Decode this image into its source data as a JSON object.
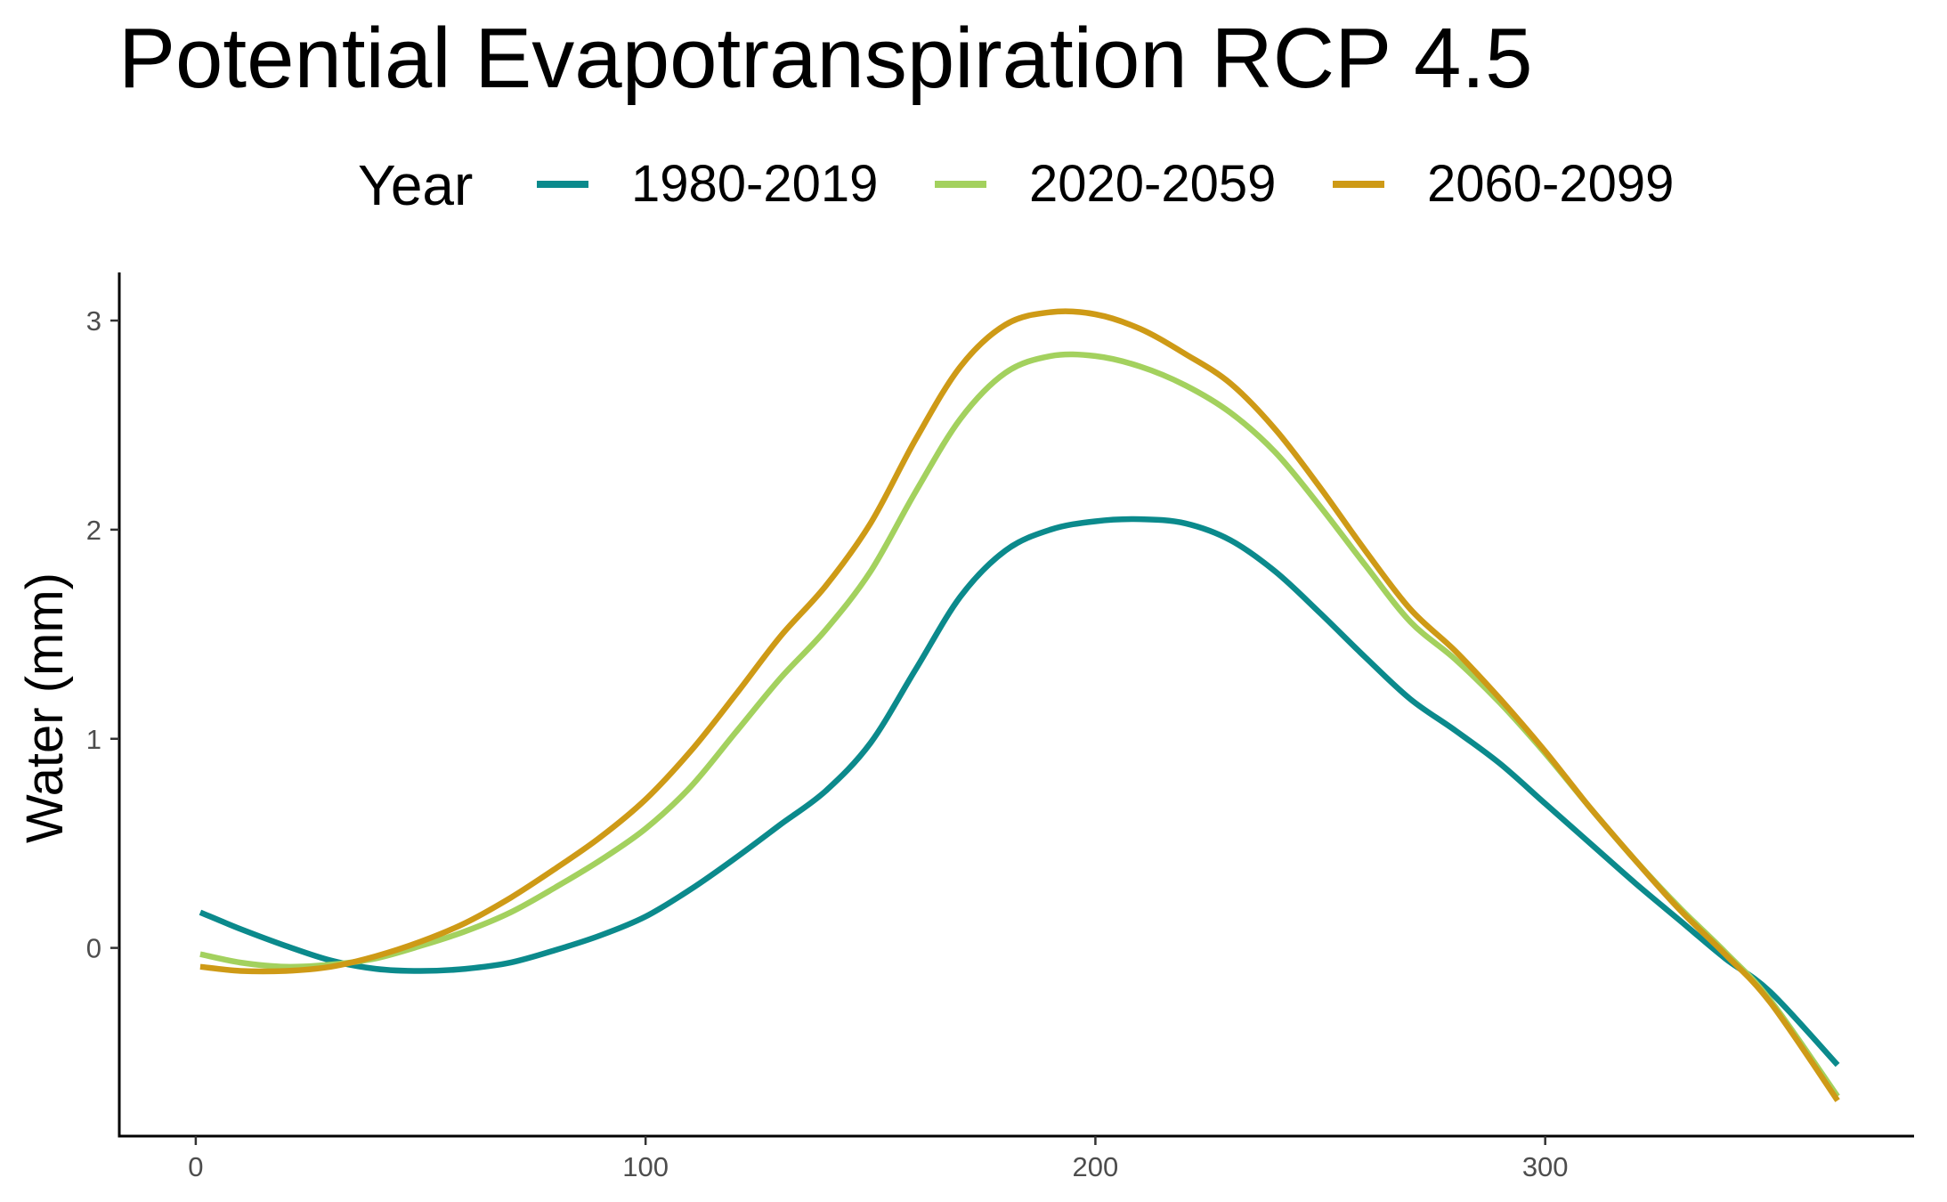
{
  "chart_data": {
    "type": "line",
    "title": "Potential Evapotranspiration RCP 4.5",
    "xlabel": "",
    "ylabel": "Water (mm)",
    "xlim": [
      -17,
      382
    ],
    "ylim": [
      -0.9,
      3.23
    ],
    "x_ticks": [
      0,
      100,
      200,
      300
    ],
    "x_tick_labels": [
      "0",
      "100",
      "200",
      "300"
    ],
    "y_ticks": [
      0,
      1,
      2,
      3
    ],
    "y_tick_labels": [
      "0",
      "1",
      "2",
      "3"
    ],
    "grid": false,
    "legend": {
      "title": "Year",
      "position": "top"
    },
    "series": [
      {
        "name": "1980-2019",
        "color": "#0B8A8C",
        "x": [
          1,
          10,
          20,
          30,
          40,
          50,
          60,
          70,
          80,
          90,
          100,
          110,
          120,
          130,
          140,
          150,
          160,
          170,
          180,
          190,
          200,
          210,
          220,
          230,
          240,
          250,
          260,
          270,
          280,
          290,
          300,
          310,
          320,
          330,
          340,
          350,
          365
        ],
        "values": [
          0.17,
          0.09,
          0.01,
          -0.06,
          -0.1,
          -0.11,
          -0.1,
          -0.07,
          -0.01,
          0.06,
          0.15,
          0.28,
          0.43,
          0.59,
          0.75,
          0.98,
          1.33,
          1.68,
          1.9,
          2.0,
          2.04,
          2.05,
          2.03,
          1.95,
          1.8,
          1.6,
          1.39,
          1.19,
          1.04,
          0.88,
          0.69,
          0.5,
          0.31,
          0.13,
          -0.05,
          -0.21,
          -0.56
        ]
      },
      {
        "name": "2020-2059",
        "color": "#A3D15E",
        "x": [
          1,
          10,
          20,
          30,
          40,
          50,
          60,
          70,
          80,
          90,
          100,
          110,
          120,
          130,
          140,
          150,
          160,
          170,
          180,
          190,
          200,
          210,
          220,
          230,
          240,
          250,
          260,
          270,
          280,
          290,
          300,
          310,
          320,
          330,
          340,
          350,
          365
        ],
        "values": [
          -0.03,
          -0.07,
          -0.09,
          -0.08,
          -0.05,
          0.01,
          0.08,
          0.17,
          0.29,
          0.42,
          0.57,
          0.77,
          1.03,
          1.29,
          1.52,
          1.8,
          2.18,
          2.53,
          2.75,
          2.83,
          2.83,
          2.78,
          2.69,
          2.56,
          2.37,
          2.11,
          1.83,
          1.56,
          1.38,
          1.17,
          0.93,
          0.67,
          0.42,
          0.19,
          -0.02,
          -0.25,
          -0.71
        ]
      },
      {
        "name": "2060-2099",
        "color": "#CE9A16",
        "x": [
          1,
          10,
          20,
          30,
          40,
          50,
          60,
          70,
          80,
          90,
          100,
          110,
          120,
          130,
          140,
          150,
          160,
          170,
          180,
          190,
          200,
          210,
          220,
          230,
          240,
          250,
          260,
          270,
          280,
          290,
          300,
          310,
          320,
          330,
          340,
          350,
          365
        ],
        "values": [
          -0.09,
          -0.11,
          -0.11,
          -0.09,
          -0.04,
          0.03,
          0.12,
          0.24,
          0.38,
          0.53,
          0.71,
          0.94,
          1.21,
          1.49,
          1.73,
          2.03,
          2.43,
          2.78,
          2.98,
          3.04,
          3.03,
          2.96,
          2.84,
          2.7,
          2.48,
          2.2,
          1.9,
          1.62,
          1.42,
          1.19,
          0.94,
          0.67,
          0.42,
          0.18,
          -0.03,
          -0.26,
          -0.73
        ]
      }
    ]
  }
}
